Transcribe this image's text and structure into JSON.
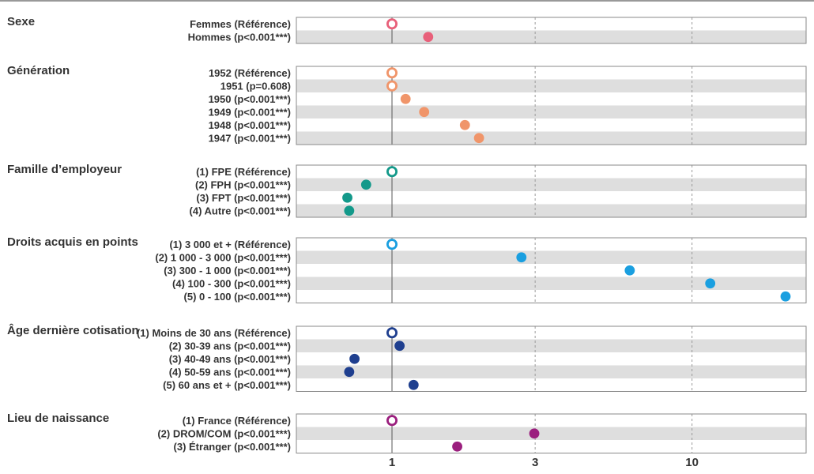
{
  "chart_data": {
    "type": "scatter",
    "x_scale": "log",
    "xlim": [
      0.48,
      24
    ],
    "reference_value": 1,
    "x_ticks": [
      {
        "value": 1,
        "label": "1"
      },
      {
        "value": 3,
        "label": "3"
      },
      {
        "value": 10,
        "label": "10"
      }
    ],
    "grid": "vertical dashed at 3 and 10, solid reference line at 1; alternating grey row bands",
    "groups": [
      {
        "title": "Sexe",
        "color": "#e8607a",
        "rows": [
          {
            "label": "Femmes (Référence)",
            "value": 1,
            "reference": true
          },
          {
            "label": "Hommes (p<0.001***)",
            "value": 1.32
          }
        ]
      },
      {
        "title": "Génération",
        "color": "#f0956a",
        "rows": [
          {
            "label": "1952 (Référence)",
            "value": 1,
            "reference": true
          },
          {
            "label": "1951 (p=0.608)",
            "value": 1,
            "reference": true
          },
          {
            "label": "1950 (p<0.001***)",
            "value": 1.11
          },
          {
            "label": "1949 (p<0.001***)",
            "value": 1.28
          },
          {
            "label": "1948 (p<0.001***)",
            "value": 1.75
          },
          {
            "label": "1947 (p<0.001***)",
            "value": 1.95
          }
        ]
      },
      {
        "title": "Famille d’employeur",
        "color": "#13998a",
        "rows": [
          {
            "label": "(1) FPE (Référence)",
            "value": 1,
            "reference": true
          },
          {
            "label": "(2) FPH (p<0.001***)",
            "value": 0.82
          },
          {
            "label": "(3) FPT (p<0.001***)",
            "value": 0.71
          },
          {
            "label": "(4) Autre (p<0.001***)",
            "value": 0.72
          }
        ]
      },
      {
        "title": "Droits acquis en points",
        "color": "#1a9fe0",
        "rows": [
          {
            "label": "(1) 3 000 et + (Référence)",
            "value": 1,
            "reference": true
          },
          {
            "label": "(2) 1 000 - 3 000 (p<0.001***)",
            "value": 2.7
          },
          {
            "label": "(3) 300 - 1 000 (p<0.001***)",
            "value": 6.2
          },
          {
            "label": "(4) 100 - 300 (p<0.001***)",
            "value": 11.5
          },
          {
            "label": "(5) 0 - 100 (p<0.001***)",
            "value": 20.5
          }
        ]
      },
      {
        "title": "Âge dernière cotisation",
        "color": "#1f3f8f",
        "rows": [
          {
            "label": "(1) Moins de 30 ans (Référence)",
            "value": 1,
            "reference": true
          },
          {
            "label": "(2) 30-39 ans (p<0.001***)",
            "value": 1.06
          },
          {
            "label": "(3) 40-49 ans (p<0.001***)",
            "value": 0.75
          },
          {
            "label": "(4) 50-59 ans (p<0.001***)",
            "value": 0.72
          },
          {
            "label": "(5) 60 ans et + (p<0.001***)",
            "value": 1.18
          }
        ]
      },
      {
        "title": "Lieu de naissance",
        "color": "#9b1f7e",
        "rows": [
          {
            "label": "(1) France (Référence)",
            "value": 1,
            "reference": true
          },
          {
            "label": "(2) DROM/COM (p<0.001***)",
            "value": 2.98
          },
          {
            "label": "(3) Étranger (p<0.001***)",
            "value": 1.65
          }
        ]
      }
    ]
  }
}
